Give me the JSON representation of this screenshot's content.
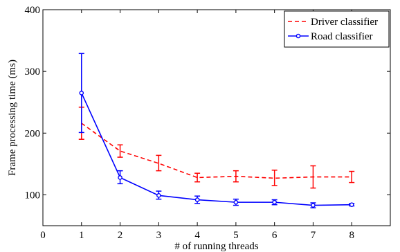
{
  "chart_data": {
    "type": "line",
    "title": "",
    "xlabel": "# of running threads",
    "ylabel": "Frame processing time (ms)",
    "xlim": [
      0,
      9
    ],
    "ylim": [
      50,
      400
    ],
    "xticks": [
      "0",
      "1",
      "2",
      "3",
      "4",
      "5",
      "6",
      "7",
      "8"
    ],
    "yticks": [
      "100",
      "200",
      "300",
      "400"
    ],
    "grid": false,
    "legend_position": "top-right",
    "x": [
      1,
      2,
      3,
      4,
      5,
      6,
      7,
      8
    ],
    "series": [
      {
        "name": "Driver classifier",
        "color": "#ff0000",
        "line_style": "dashed",
        "marker": "none",
        "values": [
          216,
          171,
          151,
          128,
          130,
          127,
          129,
          129
        ],
        "error_low": [
          190,
          161,
          139,
          121,
          121,
          115,
          111,
          120
        ],
        "error_high": [
          242,
          181,
          164,
          135,
          139,
          140,
          147,
          138
        ]
      },
      {
        "name": "Road classifier",
        "color": "#0000ff",
        "line_style": "solid",
        "marker": "circle",
        "values": [
          265,
          128,
          99,
          92,
          88,
          88,
          83,
          84
        ],
        "error_low": [
          201,
          118,
          93,
          86,
          83,
          84,
          79,
          82
        ],
        "error_high": [
          329,
          139,
          106,
          98,
          93,
          92,
          87,
          86
        ]
      }
    ]
  }
}
